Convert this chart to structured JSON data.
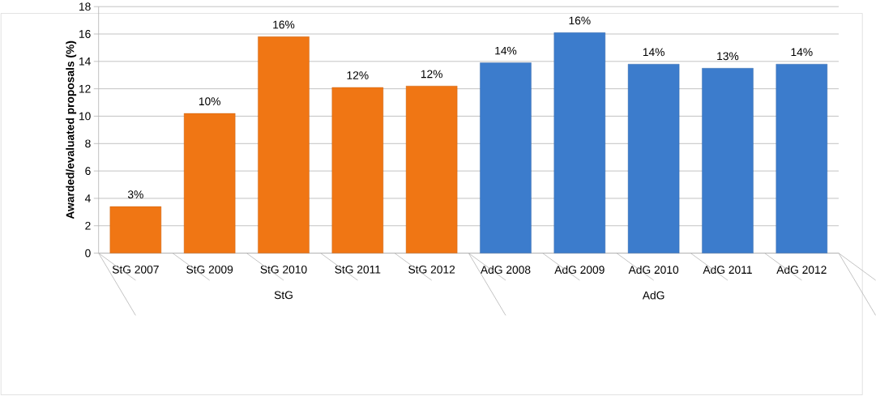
{
  "chart_data": {
    "type": "bar",
    "ylabel": "Awarded/evaluated proposals (%)",
    "categories": [
      "StG 2007",
      "StG 2009",
      "StG 2010",
      "StG 2011",
      "StG 2012",
      "AdG 2008",
      "AdG 2009",
      "AdG 2010",
      "AdG 2011",
      "AdG 2012"
    ],
    "values": [
      3.4,
      10.2,
      15.8,
      12.1,
      12.2,
      13.9,
      16.1,
      13.8,
      13.5,
      13.8
    ],
    "value_labels": [
      "3%",
      "10%",
      "16%",
      "12%",
      "12%",
      "14%",
      "16%",
      "14%",
      "13%",
      "14%"
    ],
    "colors": [
      "#f07614",
      "#f07614",
      "#f07614",
      "#f07614",
      "#f07614",
      "#3c7ccc",
      "#3c7ccc",
      "#3c7ccc",
      "#3c7ccc",
      "#3c7ccc"
    ],
    "annotations": [
      "StG",
      "AdG"
    ],
    "ylim": [
      0,
      18
    ],
    "yticks": [
      0,
      2,
      4,
      6,
      8,
      10,
      12,
      14,
      16,
      18
    ],
    "grid": "y"
  }
}
